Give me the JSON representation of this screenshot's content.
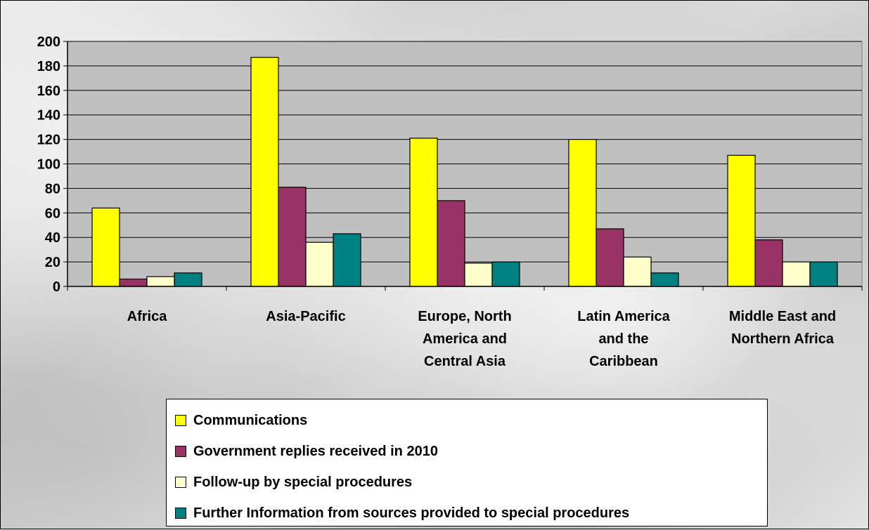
{
  "chart_data": {
    "type": "bar",
    "categories": [
      [
        "Africa"
      ],
      [
        "Asia-Pacific"
      ],
      [
        "Europe, North",
        "America and",
        "Central Asia"
      ],
      [
        "Latin America",
        "and the",
        "Caribbean"
      ],
      [
        "Middle East and",
        "Northern Africa"
      ]
    ],
    "series": [
      {
        "name": "Communications",
        "color": "#ffff00",
        "values": [
          64,
          187,
          121,
          120,
          107
        ]
      },
      {
        "name": "Government replies received in 2010",
        "color": "#993366",
        "values": [
          6,
          81,
          70,
          47,
          38
        ]
      },
      {
        "name": "Follow-up by special procedures",
        "color": "#ffffcc",
        "values": [
          8,
          36,
          19,
          24,
          20
        ]
      },
      {
        "name": "Further Information from sources provided to special procedures",
        "color": "#008080",
        "values": [
          11,
          43,
          20,
          11,
          20
        ]
      }
    ],
    "yticks": [
      "0",
      "20",
      "40",
      "60",
      "80",
      "100",
      "120",
      "140",
      "160",
      "180",
      "200"
    ],
    "ylim": [
      0,
      200
    ],
    "grid": true,
    "plot_background": "#c0c0c0",
    "legend_position": "bottom"
  }
}
